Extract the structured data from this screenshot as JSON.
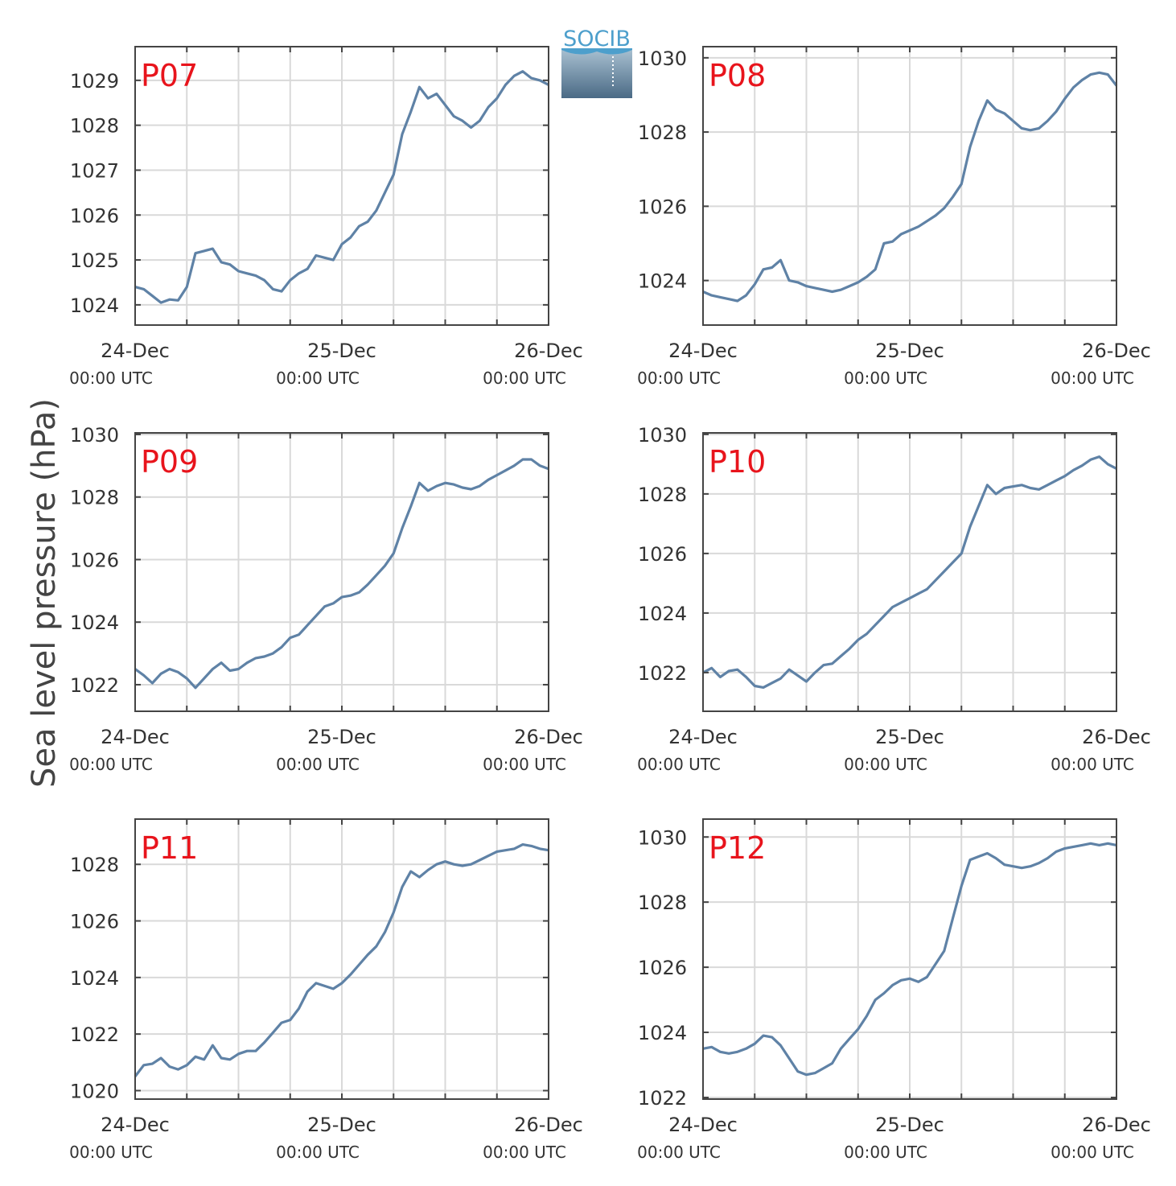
{
  "ylabel": "Sea level pressure (hPa)",
  "logo": {
    "text": "SOCIB",
    "color": "#4d9fcc"
  },
  "colors": {
    "line": "#5f82a6",
    "panel_label": "#e8141c",
    "grid": "#d9d9d9",
    "axis": "#444444"
  },
  "chart_data": [
    {
      "type": "line",
      "panel": "P07",
      "ylim": [
        1023.55,
        1029.75
      ],
      "yticks": [
        1024,
        1025,
        1026,
        1027,
        1028,
        1029
      ],
      "xlim": [
        0,
        48
      ],
      "xticks": [
        0,
        24,
        48
      ],
      "xtick_labels": [
        [
          "24-Dec",
          "00:00 UTC"
        ],
        [
          "25-Dec",
          "00:00 UTC"
        ],
        [
          "26-Dec",
          "00:00 UTC"
        ]
      ],
      "grid": true,
      "series": [
        {
          "x": [
            0,
            1,
            2,
            3,
            4,
            5,
            6,
            7,
            8,
            9,
            10,
            11,
            12,
            13,
            14,
            15,
            16,
            17,
            18,
            19,
            20,
            21,
            22,
            23,
            24,
            25,
            26,
            27,
            28,
            29,
            30,
            31,
            32,
            33,
            34,
            35,
            36,
            37,
            38,
            39,
            40,
            41,
            42,
            43,
            44,
            45,
            46,
            47,
            48
          ],
          "y": [
            1024.4,
            1024.35,
            1024.2,
            1024.05,
            1024.12,
            1024.1,
            1024.4,
            1025.15,
            1025.2,
            1025.25,
            1024.95,
            1024.9,
            1024.75,
            1024.7,
            1024.65,
            1024.55,
            1024.35,
            1024.3,
            1024.55,
            1024.7,
            1024.8,
            1025.1,
            1025.05,
            1025.0,
            1025.35,
            1025.5,
            1025.75,
            1025.85,
            1026.1,
            1026.5,
            1026.9,
            1027.8,
            1028.3,
            1028.85,
            1028.6,
            1028.7,
            1028.45,
            1028.2,
            1028.1,
            1027.95,
            1028.1,
            1028.4,
            1028.6,
            1028.9,
            1029.1,
            1029.2,
            1029.05,
            1029.0,
            1028.9
          ]
        }
      ]
    },
    {
      "type": "line",
      "panel": "P08",
      "ylim": [
        1022.8,
        1030.3
      ],
      "yticks": [
        1024,
        1026,
        1028,
        1030
      ],
      "xlim": [
        0,
        48
      ],
      "xticks": [
        0,
        24,
        48
      ],
      "xtick_labels": [
        [
          "24-Dec",
          "00:00 UTC"
        ],
        [
          "25-Dec",
          "00:00 UTC"
        ],
        [
          "26-Dec",
          "00:00 UTC"
        ]
      ],
      "grid": true,
      "series": [
        {
          "x": [
            0,
            1,
            2,
            3,
            4,
            5,
            6,
            7,
            8,
            9,
            10,
            11,
            12,
            13,
            14,
            15,
            16,
            17,
            18,
            19,
            20,
            21,
            22,
            23,
            24,
            25,
            26,
            27,
            28,
            29,
            30,
            31,
            32,
            33,
            34,
            35,
            36,
            37,
            38,
            39,
            40,
            41,
            42,
            43,
            44,
            45,
            46,
            47,
            48
          ],
          "y": [
            1023.7,
            1023.6,
            1023.55,
            1023.5,
            1023.45,
            1023.6,
            1023.9,
            1024.3,
            1024.35,
            1024.55,
            1024.0,
            1023.95,
            1023.85,
            1023.8,
            1023.75,
            1023.7,
            1023.75,
            1023.85,
            1023.95,
            1024.1,
            1024.3,
            1025.0,
            1025.05,
            1025.25,
            1025.35,
            1025.45,
            1025.6,
            1025.75,
            1025.95,
            1026.25,
            1026.6,
            1027.6,
            1028.3,
            1028.85,
            1028.6,
            1028.5,
            1028.3,
            1028.1,
            1028.05,
            1028.1,
            1028.3,
            1028.55,
            1028.9,
            1029.2,
            1029.4,
            1029.55,
            1029.6,
            1029.55,
            1029.25
          ]
        }
      ]
    },
    {
      "type": "line",
      "panel": "P09",
      "ylim": [
        1021.15,
        1030.05
      ],
      "yticks": [
        1022,
        1024,
        1026,
        1028,
        1030
      ],
      "xlim": [
        0,
        48
      ],
      "xticks": [
        0,
        24,
        48
      ],
      "xtick_labels": [
        [
          "24-Dec",
          "00:00 UTC"
        ],
        [
          "25-Dec",
          "00:00 UTC"
        ],
        [
          "26-Dec",
          "00:00 UTC"
        ]
      ],
      "grid": true,
      "series": [
        {
          "x": [
            0,
            1,
            2,
            3,
            4,
            5,
            6,
            7,
            8,
            9,
            10,
            11,
            12,
            13,
            14,
            15,
            16,
            17,
            18,
            19,
            20,
            21,
            22,
            23,
            24,
            25,
            26,
            27,
            28,
            29,
            30,
            31,
            32,
            33,
            34,
            35,
            36,
            37,
            38,
            39,
            40,
            41,
            42,
            43,
            44,
            45,
            46,
            47,
            48
          ],
          "y": [
            1022.5,
            1022.3,
            1022.05,
            1022.35,
            1022.5,
            1022.4,
            1022.2,
            1021.9,
            1022.2,
            1022.5,
            1022.7,
            1022.45,
            1022.5,
            1022.7,
            1022.85,
            1022.9,
            1023.0,
            1023.2,
            1023.5,
            1023.6,
            1023.9,
            1024.2,
            1024.5,
            1024.6,
            1024.8,
            1024.85,
            1024.95,
            1025.2,
            1025.5,
            1025.8,
            1026.2,
            1027.0,
            1027.7,
            1028.45,
            1028.2,
            1028.35,
            1028.45,
            1028.4,
            1028.3,
            1028.25,
            1028.35,
            1028.55,
            1028.7,
            1028.85,
            1029.0,
            1029.2,
            1029.2,
            1029.0,
            1028.9
          ]
        }
      ]
    },
    {
      "type": "line",
      "panel": "P10",
      "ylim": [
        1020.7,
        1030.05
      ],
      "yticks": [
        1022,
        1024,
        1026,
        1028,
        1030
      ],
      "xlim": [
        0,
        48
      ],
      "xticks": [
        0,
        24,
        48
      ],
      "xtick_labels": [
        [
          "24-Dec",
          "00:00 UTC"
        ],
        [
          "25-Dec",
          "00:00 UTC"
        ],
        [
          "26-Dec",
          "00:00 UTC"
        ]
      ],
      "grid": true,
      "series": [
        {
          "x": [
            0,
            1,
            2,
            3,
            4,
            5,
            6,
            7,
            8,
            9,
            10,
            11,
            12,
            13,
            14,
            15,
            16,
            17,
            18,
            19,
            20,
            21,
            22,
            23,
            24,
            25,
            26,
            27,
            28,
            29,
            30,
            31,
            32,
            33,
            34,
            35,
            36,
            37,
            38,
            39,
            40,
            41,
            42,
            43,
            44,
            45,
            46,
            47,
            48
          ],
          "y": [
            1022.0,
            1022.15,
            1021.85,
            1022.05,
            1022.1,
            1021.85,
            1021.55,
            1021.5,
            1021.65,
            1021.8,
            1022.1,
            1021.9,
            1021.7,
            1022.0,
            1022.25,
            1022.3,
            1022.55,
            1022.8,
            1023.1,
            1023.3,
            1023.6,
            1023.9,
            1024.2,
            1024.35,
            1024.5,
            1024.65,
            1024.8,
            1025.1,
            1025.4,
            1025.7,
            1026.0,
            1026.9,
            1027.6,
            1028.3,
            1028.0,
            1028.2,
            1028.25,
            1028.3,
            1028.2,
            1028.15,
            1028.3,
            1028.45,
            1028.6,
            1028.8,
            1028.95,
            1029.15,
            1029.25,
            1029.0,
            1028.85
          ]
        }
      ]
    },
    {
      "type": "line",
      "panel": "P11",
      "ylim": [
        1019.7,
        1029.6
      ],
      "yticks": [
        1020,
        1022,
        1024,
        1026,
        1028
      ],
      "xlim": [
        0,
        48
      ],
      "xticks": [
        0,
        24,
        48
      ],
      "xtick_labels": [
        [
          "24-Dec",
          "00:00 UTC"
        ],
        [
          "25-Dec",
          "00:00 UTC"
        ],
        [
          "26-Dec",
          "00:00 UTC"
        ]
      ],
      "grid": true,
      "series": [
        {
          "x": [
            0,
            1,
            2,
            3,
            4,
            5,
            6,
            7,
            8,
            9,
            10,
            11,
            12,
            13,
            14,
            15,
            16,
            17,
            18,
            19,
            20,
            21,
            22,
            23,
            24,
            25,
            26,
            27,
            28,
            29,
            30,
            31,
            32,
            33,
            34,
            35,
            36,
            37,
            38,
            39,
            40,
            41,
            42,
            43,
            44,
            45,
            46,
            47,
            48
          ],
          "y": [
            1020.5,
            1020.9,
            1020.95,
            1021.15,
            1020.85,
            1020.75,
            1020.9,
            1021.2,
            1021.1,
            1021.6,
            1021.15,
            1021.1,
            1021.3,
            1021.4,
            1021.4,
            1021.7,
            1022.05,
            1022.4,
            1022.5,
            1022.9,
            1023.5,
            1023.8,
            1023.7,
            1023.6,
            1023.8,
            1024.1,
            1024.45,
            1024.8,
            1025.1,
            1025.6,
            1026.3,
            1027.2,
            1027.75,
            1027.55,
            1027.8,
            1028.0,
            1028.1,
            1028.0,
            1027.95,
            1028.0,
            1028.15,
            1028.3,
            1028.45,
            1028.5,
            1028.55,
            1028.7,
            1028.65,
            1028.55,
            1028.5
          ]
        }
      ]
    },
    {
      "type": "line",
      "panel": "P12",
      "ylim": [
        1021.95,
        1030.55
      ],
      "yticks": [
        1022,
        1024,
        1026,
        1028,
        1030
      ],
      "xlim": [
        0,
        48
      ],
      "xticks": [
        0,
        24,
        48
      ],
      "xtick_labels": [
        [
          "24-Dec",
          "00:00 UTC"
        ],
        [
          "25-Dec",
          "00:00 UTC"
        ],
        [
          "26-Dec",
          "00:00 UTC"
        ]
      ],
      "grid": true,
      "series": [
        {
          "x": [
            0,
            1,
            2,
            3,
            4,
            5,
            6,
            7,
            8,
            9,
            10,
            11,
            12,
            13,
            14,
            15,
            16,
            17,
            18,
            19,
            20,
            21,
            22,
            23,
            24,
            25,
            26,
            27,
            28,
            29,
            30,
            31,
            32,
            33,
            34,
            35,
            36,
            37,
            38,
            39,
            40,
            41,
            42,
            43,
            44,
            45,
            46,
            47,
            48
          ],
          "y": [
            1023.5,
            1023.55,
            1023.4,
            1023.35,
            1023.4,
            1023.5,
            1023.65,
            1023.9,
            1023.85,
            1023.6,
            1023.2,
            1022.8,
            1022.7,
            1022.75,
            1022.9,
            1023.05,
            1023.5,
            1023.8,
            1024.1,
            1024.5,
            1025.0,
            1025.2,
            1025.45,
            1025.6,
            1025.65,
            1025.55,
            1025.7,
            1026.1,
            1026.5,
            1027.5,
            1028.5,
            1029.3,
            1029.4,
            1029.5,
            1029.35,
            1029.15,
            1029.1,
            1029.05,
            1029.1,
            1029.2,
            1029.35,
            1029.55,
            1029.65,
            1029.7,
            1029.75,
            1029.8,
            1029.75,
            1029.8,
            1029.75
          ]
        }
      ]
    }
  ]
}
